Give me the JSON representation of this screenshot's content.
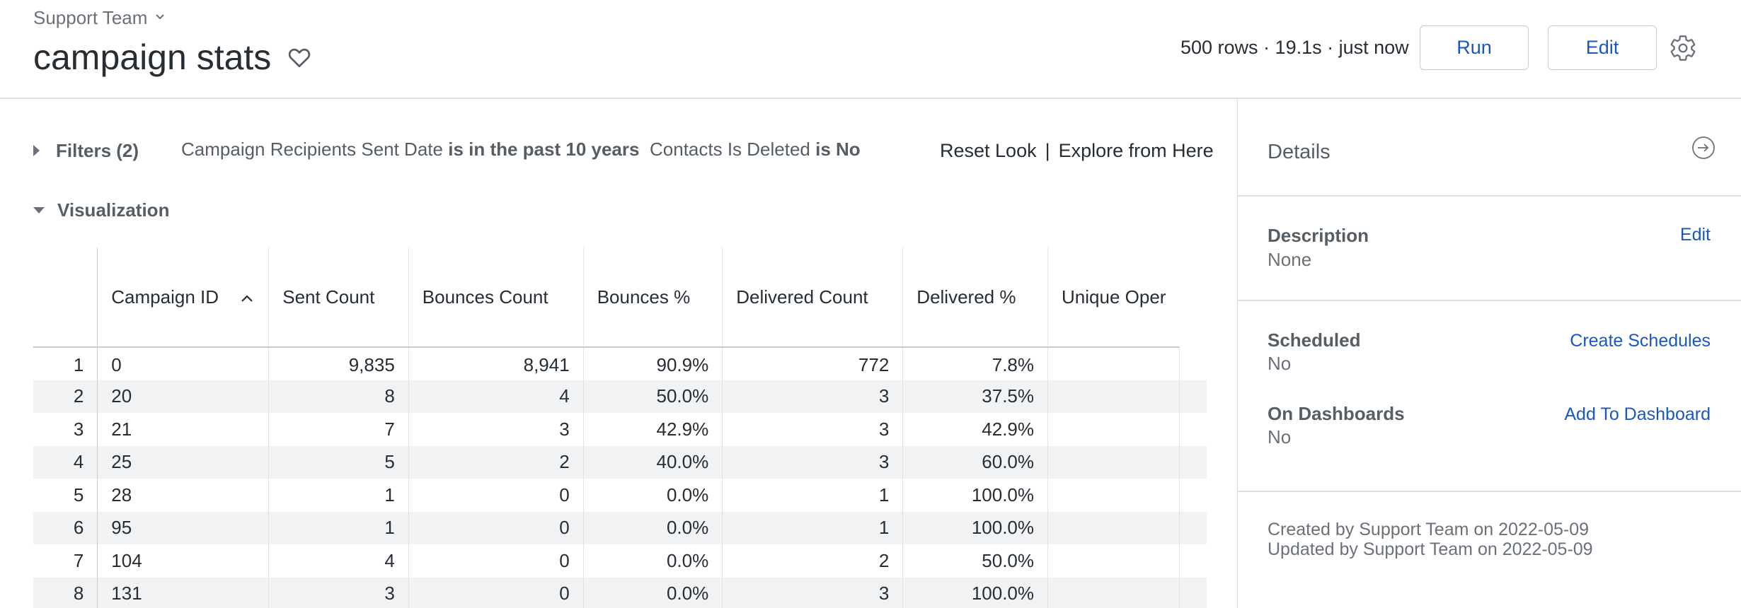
{
  "header": {
    "breadcrumb": "Support Team",
    "title": "campaign stats",
    "meta": "500 rows · 19.1s · just now",
    "run_label": "Run",
    "edit_label": "Edit"
  },
  "filters": {
    "label": "Filters (2)",
    "items": [
      {
        "field": "Campaign Recipients Sent Date",
        "condition": "is in the past 10 years"
      },
      {
        "field": "Contacts Is Deleted",
        "condition": "is No"
      }
    ],
    "reset_label": "Reset Look",
    "separator": "|",
    "explore_label": "Explore from Here"
  },
  "visualization": {
    "label": "Visualization"
  },
  "table": {
    "columns": [
      "Campaign ID",
      "Sent Count",
      "Bounces Count",
      "Bounces %",
      "Delivered Count",
      "Delivered %",
      "Unique Oper"
    ],
    "rows": [
      {
        "idx": "1",
        "cells": [
          "0",
          "9,835",
          "8,941",
          "90.9%",
          "772",
          "7.8%",
          ""
        ]
      },
      {
        "idx": "2",
        "cells": [
          "20",
          "8",
          "4",
          "50.0%",
          "3",
          "37.5%",
          ""
        ]
      },
      {
        "idx": "3",
        "cells": [
          "21",
          "7",
          "3",
          "42.9%",
          "3",
          "42.9%",
          ""
        ]
      },
      {
        "idx": "4",
        "cells": [
          "25",
          "5",
          "2",
          "40.0%",
          "3",
          "60.0%",
          ""
        ]
      },
      {
        "idx": "5",
        "cells": [
          "28",
          "1",
          "0",
          "0.0%",
          "1",
          "100.0%",
          ""
        ]
      },
      {
        "idx": "6",
        "cells": [
          "95",
          "1",
          "0",
          "0.0%",
          "1",
          "100.0%",
          ""
        ]
      },
      {
        "idx": "7",
        "cells": [
          "104",
          "4",
          "0",
          "0.0%",
          "2",
          "50.0%",
          ""
        ]
      },
      {
        "idx": "8",
        "cells": [
          "131",
          "3",
          "0",
          "0.0%",
          "3",
          "100.0%",
          ""
        ]
      }
    ]
  },
  "details": {
    "title": "Details",
    "description_label": "Description",
    "description_value": "None",
    "description_edit": "Edit",
    "scheduled_label": "Scheduled",
    "scheduled_value": "No",
    "scheduled_link": "Create Schedules",
    "dashboards_label": "On Dashboards",
    "dashboards_value": "No",
    "dashboards_link": "Add To Dashboard",
    "created": "Created by Support Team on 2022-05-09",
    "updated": "Updated by Support Team on 2022-05-09"
  },
  "colors": {
    "accent": "#1a57c2",
    "text": "#262d33",
    "muted": "#6a7178",
    "stripe": "#f1f2f3"
  },
  "icons": {
    "breadcrumb": "chevron-down-icon",
    "favorite": "heart-outline-icon",
    "settings": "gear-icon",
    "filters_toggle": "caret-right-icon",
    "viz_toggle": "caret-down-icon",
    "sort": "sort-ascending-icon",
    "panel_collapse": "collapse-panel-icon"
  }
}
